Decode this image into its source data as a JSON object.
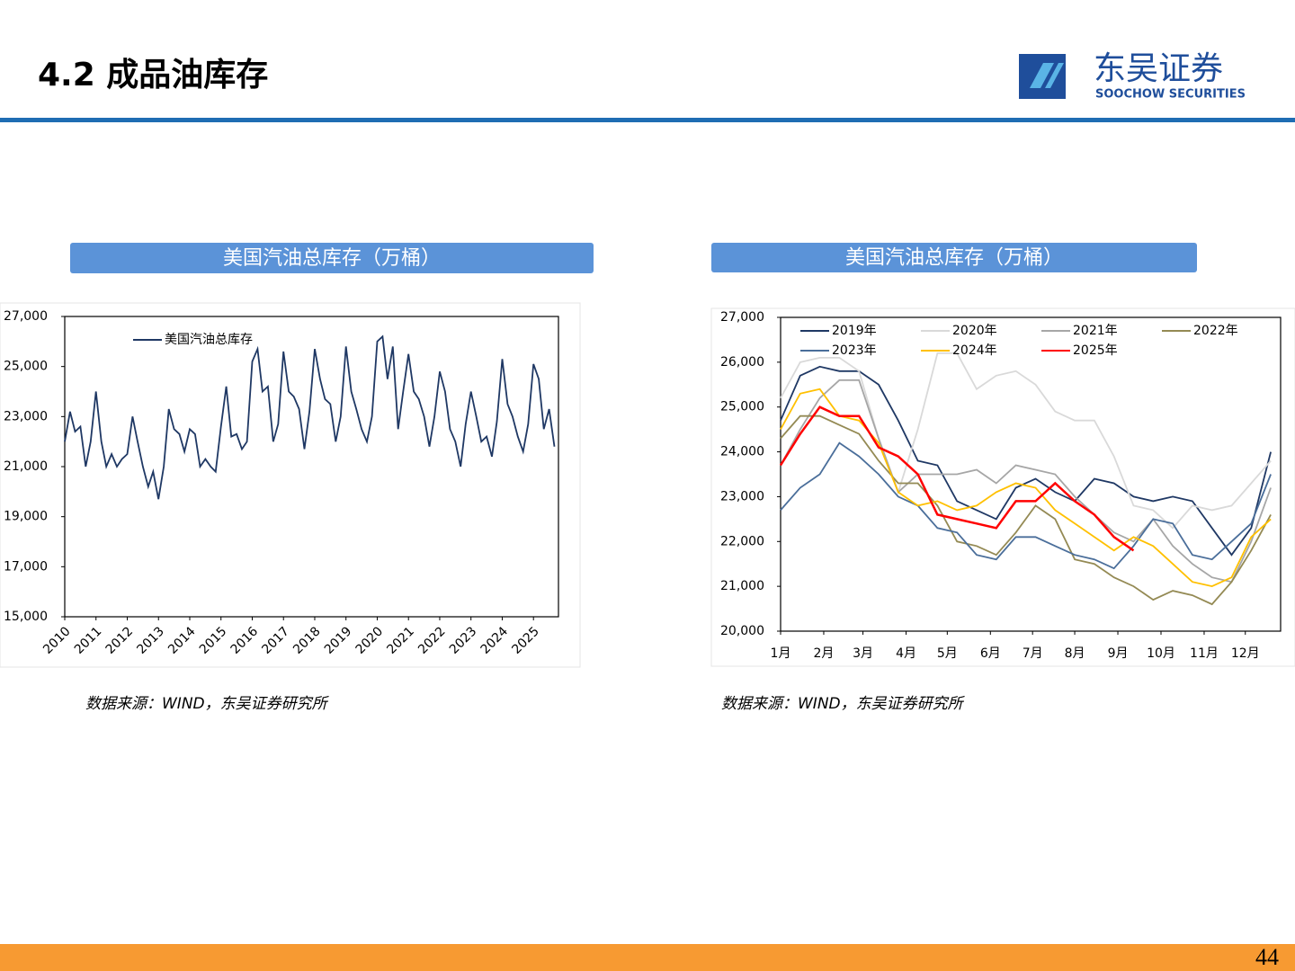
{
  "header": {
    "title": "4.2 成品油库存"
  },
  "logo": {
    "name": "东吴证券",
    "subtitle": "SOOCHOW SECURITIES"
  },
  "page_number": "44",
  "chart_data": [
    {
      "type": "line",
      "title": "美国汽油总库存（万桶）",
      "source": "数据来源：WIND，东吴证券研究所",
      "xlim": [
        2010,
        2025.8
      ],
      "xticks": [
        2010,
        2011,
        2012,
        2013,
        2014,
        2015,
        2016,
        2017,
        2018,
        2019,
        2020,
        2021,
        2022,
        2023,
        2024,
        2025
      ],
      "ylim": [
        15000,
        27000
      ],
      "yticks": [
        {
          "value": 15000,
          "label": "15,000"
        },
        {
          "value": 17000,
          "label": "17,000"
        },
        {
          "value": 19000,
          "label": "19,000"
        },
        {
          "value": 21000,
          "label": "21,000"
        },
        {
          "value": 23000,
          "label": "23,000"
        },
        {
          "value": 25000,
          "label": "25,000"
        },
        {
          "value": 27000,
          "label": "27,000"
        }
      ],
      "grid": false,
      "legend": "top-left",
      "x": [
        2010,
        2010.17,
        2010.33,
        2010.5,
        2010.67,
        2010.83,
        2011,
        2011.17,
        2011.33,
        2011.5,
        2011.67,
        2011.83,
        2012,
        2012.17,
        2012.33,
        2012.5,
        2012.67,
        2012.83,
        2013,
        2013.17,
        2013.33,
        2013.5,
        2013.67,
        2013.83,
        2014,
        2014.17,
        2014.33,
        2014.5,
        2014.67,
        2014.83,
        2015,
        2015.17,
        2015.33,
        2015.5,
        2015.67,
        2015.83,
        2016,
        2016.17,
        2016.33,
        2016.5,
        2016.67,
        2016.83,
        2017,
        2017.17,
        2017.33,
        2017.5,
        2017.67,
        2017.83,
        2018,
        2018.17,
        2018.33,
        2018.5,
        2018.67,
        2018.83,
        2019,
        2019.17,
        2019.33,
        2019.5,
        2019.67,
        2019.83,
        2020,
        2020.17,
        2020.33,
        2020.5,
        2020.67,
        2020.83,
        2021,
        2021.17,
        2021.33,
        2021.5,
        2021.67,
        2021.83,
        2022,
        2022.17,
        2022.33,
        2022.5,
        2022.67,
        2022.83,
        2023,
        2023.17,
        2023.33,
        2023.5,
        2023.67,
        2023.83,
        2024,
        2024.17,
        2024.33,
        2024.5,
        2024.67,
        2024.83,
        2025,
        2025.17,
        2025.33,
        2025.5,
        2025.67
      ],
      "series": [
        {
          "name": "美国汽油总库存",
          "color": "#1f3864",
          "values": [
            22000,
            23200,
            22400,
            22600,
            21000,
            22000,
            24000,
            22000,
            21000,
            21500,
            21000,
            21300,
            21500,
            23000,
            22000,
            21000,
            20200,
            20800,
            19700,
            21000,
            23300,
            22500,
            22300,
            21600,
            22500,
            22300,
            21000,
            21300,
            21000,
            20800,
            22600,
            24200,
            22200,
            22300,
            21700,
            22000,
            25200,
            25700,
            24000,
            24200,
            22000,
            22700,
            25600,
            24000,
            23800,
            23300,
            21700,
            23200,
            25700,
            24500,
            23700,
            23500,
            22000,
            23000,
            25800,
            24000,
            23300,
            22500,
            22000,
            23000,
            26000,
            26200,
            24500,
            25800,
            22500,
            24000,
            25500,
            24000,
            23700,
            23000,
            21800,
            23000,
            24800,
            24000,
            22500,
            22000,
            21000,
            22700,
            24000,
            23000,
            22000,
            22200,
            21400,
            22800,
            25300,
            23500,
            23000,
            22200,
            21600,
            22700,
            25100,
            24500,
            22500,
            23300,
            21800
          ]
        }
      ]
    },
    {
      "type": "line",
      "title": "美国汽油总库存（万桶）",
      "source": "数据来源：WIND，东吴证券研究所",
      "xlim": [
        1,
        52
      ],
      "xticks": [
        {
          "value": 1,
          "label": "1月"
        },
        {
          "value": 5.4,
          "label": "2月"
        },
        {
          "value": 9.4,
          "label": "3月"
        },
        {
          "value": 13.8,
          "label": "4月"
        },
        {
          "value": 18,
          "label": "5月"
        },
        {
          "value": 22.4,
          "label": "6月"
        },
        {
          "value": 26.7,
          "label": "7月"
        },
        {
          "value": 31,
          "label": "8月"
        },
        {
          "value": 35.4,
          "label": "9月"
        },
        {
          "value": 39.8,
          "label": "10月"
        },
        {
          "value": 44.2,
          "label": "11月"
        },
        {
          "value": 48.4,
          "label": "12月"
        }
      ],
      "ylim": [
        20000,
        27000
      ],
      "yticks": [
        {
          "value": 20000,
          "label": "20,000"
        },
        {
          "value": 21000,
          "label": "21,000"
        },
        {
          "value": 22000,
          "label": "22,000"
        },
        {
          "value": 23000,
          "label": "23,000"
        },
        {
          "value": 24000,
          "label": "24,000"
        },
        {
          "value": 25000,
          "label": "25,000"
        },
        {
          "value": 26000,
          "label": "26,000"
        },
        {
          "value": 27000,
          "label": "27,000"
        }
      ],
      "grid": false,
      "legend": "top",
      "x": [
        1,
        3,
        5,
        7,
        9,
        11,
        13,
        15,
        17,
        19,
        21,
        23,
        25,
        27,
        29,
        31,
        33,
        35,
        37,
        39,
        41,
        43,
        45,
        47,
        49,
        51
      ],
      "series": [
        {
          "name": "2019年",
          "color": "#1f3864",
          "values": [
            24700,
            25700,
            25900,
            25800,
            25800,
            25500,
            24700,
            23800,
            23700,
            22900,
            22700,
            22500,
            23200,
            23400,
            23100,
            22900,
            23400,
            23300,
            23000,
            22900,
            23000,
            22900,
            22300,
            21700,
            22300,
            24000
          ]
        },
        {
          "name": "2020年",
          "color": "#d9d9d9",
          "values": [
            25200,
            26000,
            26100,
            26100,
            25800,
            24300,
            23100,
            24500,
            26200,
            26200,
            25400,
            25700,
            25800,
            25500,
            24900,
            24700,
            24700,
            23900,
            22800,
            22700,
            22300,
            22800,
            22700,
            22800,
            23300,
            23800
          ]
        },
        {
          "name": "2021年",
          "color": "#a6a6a6",
          "values": [
            23700,
            24500,
            25200,
            25600,
            25600,
            24300,
            23100,
            23500,
            23500,
            23500,
            23600,
            23300,
            23700,
            23600,
            23500,
            23000,
            22600,
            22200,
            22000,
            22500,
            21900,
            21500,
            21200,
            21100,
            22000,
            23200
          ]
        },
        {
          "name": "2022年",
          "color": "#948a54",
          "values": [
            24300,
            24800,
            24800,
            24600,
            24400,
            23800,
            23300,
            23300,
            22800,
            22000,
            21900,
            21700,
            22200,
            22800,
            22500,
            21600,
            21500,
            21200,
            21000,
            20700,
            20900,
            20800,
            20600,
            21100,
            21800,
            22600
          ]
        },
        {
          "name": "2023年",
          "color": "#4a6e9a",
          "values": [
            22700,
            23200,
            23500,
            24200,
            23900,
            23500,
            23000,
            22800,
            22300,
            22200,
            21700,
            21600,
            22100,
            22100,
            21900,
            21700,
            21600,
            21400,
            21900,
            22500,
            22400,
            21700,
            21600,
            22000,
            22400,
            23500
          ]
        },
        {
          "name": "2024年",
          "color": "#ffc000",
          "values": [
            24500,
            25300,
            25400,
            24800,
            24700,
            24200,
            23100,
            22800,
            22900,
            22700,
            22800,
            23100,
            23300,
            23200,
            22700,
            22400,
            22100,
            21800,
            22100,
            21900,
            21500,
            21100,
            21000,
            21200,
            22100,
            22500
          ]
        },
        {
          "name": "2025年",
          "color": "#ff0000",
          "values": [
            23700,
            24400,
            25000,
            24800,
            24800,
            24100,
            23900,
            23500,
            22600,
            22500,
            22400,
            22300,
            22900,
            22900,
            23300,
            22900,
            22600,
            22100,
            21800,
            null,
            null,
            null,
            null,
            null,
            null,
            null
          ]
        }
      ]
    }
  ]
}
